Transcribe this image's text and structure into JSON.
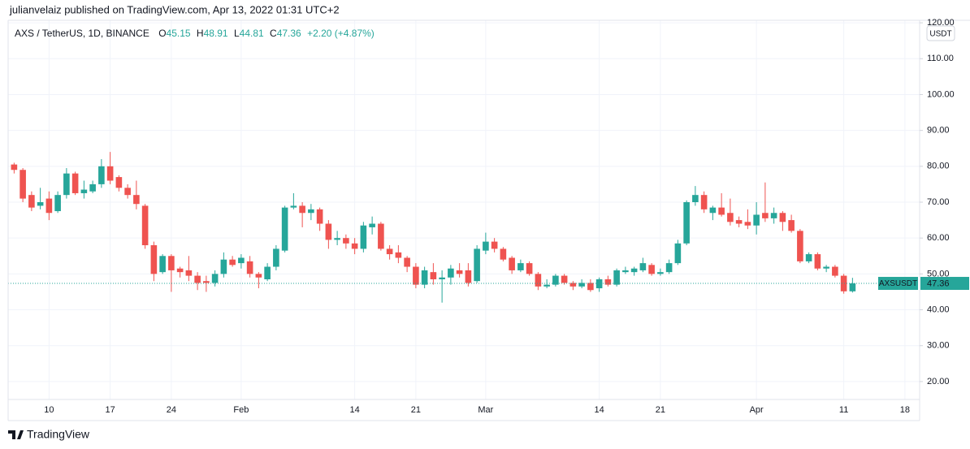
{
  "header": "julianvelaiz published on TradingView.com, Apr 13, 2022 01:31 UTC+2",
  "footer": "TradingView",
  "chart_data": {
    "type": "candlestick",
    "title": "AXS / TetherUS, 1D, BINANCE",
    "ohlc_letters": [
      "O",
      "H",
      "L",
      "C"
    ],
    "change": "+2.20 (+4.87%)",
    "currency": "USDT",
    "symbol_label": "AXSUSDT",
    "up_color": "#26a69a",
    "down_color": "#ef5350",
    "grid": true,
    "ylim": [
      15,
      120.7
    ],
    "yticks": [
      {
        "value": 20,
        "label": "20.00"
      },
      {
        "value": 30,
        "label": "30.00"
      },
      {
        "value": 40,
        "label": "40.00"
      },
      {
        "value": 50,
        "label": "50.00"
      },
      {
        "value": 60,
        "label": "60.00"
      },
      {
        "value": 70,
        "label": "70.00"
      },
      {
        "value": 80,
        "label": "80.00"
      },
      {
        "value": 90,
        "label": "90.00"
      },
      {
        "value": 100,
        "label": "100.00"
      },
      {
        "value": 110,
        "label": "110.00"
      },
      {
        "value": 120,
        "label": "120.00"
      }
    ],
    "categories": [
      null,
      null,
      null,
      null,
      "10",
      null,
      null,
      null,
      null,
      null,
      null,
      "17",
      null,
      null,
      null,
      null,
      null,
      null,
      "24",
      null,
      null,
      null,
      null,
      null,
      null,
      null,
      "Feb",
      null,
      null,
      null,
      null,
      null,
      null,
      null,
      null,
      null,
      null,
      null,
      null,
      "14",
      null,
      null,
      null,
      null,
      null,
      null,
      "21",
      null,
      null,
      null,
      null,
      null,
      null,
      null,
      "Mar",
      null,
      null,
      null,
      null,
      null,
      null,
      null,
      null,
      null,
      null,
      null,
      null,
      "14",
      null,
      null,
      null,
      null,
      null,
      null,
      "21",
      null,
      null,
      null,
      null,
      null,
      null,
      null,
      null,
      null,
      null,
      "Apr",
      null,
      null,
      null,
      null,
      null,
      null,
      null,
      null,
      null,
      "11",
      null,
      null,
      null,
      null,
      null,
      null,
      "18",
      null
    ],
    "open": [
      80.5,
      79,
      72,
      69,
      71,
      67.5,
      72,
      78,
      72.5,
      73,
      75,
      80,
      77,
      74,
      72,
      69,
      58,
      50.5,
      55,
      51.5,
      51,
      49.5,
      48,
      47.5,
      50,
      54,
      53,
      53.5,
      50,
      48.5,
      52,
      56.5,
      68.5,
      69,
      67,
      68,
      64,
      59.5,
      60,
      58.5,
      57,
      63,
      64,
      57,
      56,
      54.5,
      52,
      47,
      50.5,
      48.5,
      49,
      51,
      51,
      48,
      56.5,
      59,
      57,
      54.5,
      51,
      53,
      50,
      46.5,
      47,
      49.5,
      47.5,
      46.5,
      47.5,
      46,
      48.5,
      47,
      50.5,
      50.5,
      51,
      52.5,
      50,
      50.5,
      53,
      58.5,
      70,
      72,
      67,
      68.5,
      67,
      65,
      64.5,
      63.5,
      67,
      65.5,
      67,
      65,
      62,
      53.5,
      55.5,
      51.5,
      52,
      49.5,
      45.15,
      null,
      null,
      null,
      null,
      null,
      null,
      null
    ],
    "high": [
      81,
      79.5,
      73,
      74,
      73,
      73,
      79.5,
      78.5,
      76,
      76,
      82,
      84,
      77.5,
      75,
      76,
      69.5,
      59,
      55.5,
      55.5,
      52,
      55,
      50.5,
      49.5,
      51,
      56,
      55,
      55.5,
      55,
      50.5,
      53,
      58,
      69,
      72.5,
      70,
      69.5,
      68.5,
      65,
      62,
      61,
      60,
      64.5,
      66,
      64.5,
      58,
      58,
      55,
      53,
      52,
      53,
      51,
      52.5,
      53,
      53,
      58,
      61.5,
      60,
      57.5,
      55,
      54,
      53.5,
      50.5,
      48.5,
      50,
      50,
      48,
      48.5,
      48.5,
      49,
      49.5,
      51.5,
      52,
      52,
      54.5,
      53,
      51.5,
      54,
      59.5,
      70.5,
      74.5,
      73,
      69,
      72.5,
      71,
      66,
      68,
      70,
      75.5,
      68.5,
      67.5,
      66.5,
      62.5,
      56,
      56,
      52.5,
      52.5,
      50,
      48.91,
      null,
      null,
      null,
      null,
      null,
      null,
      null
    ],
    "low": [
      78,
      70,
      67.5,
      68,
      65,
      67,
      71,
      72,
      71,
      72.5,
      74,
      75,
      73,
      71,
      68,
      57,
      48,
      50,
      45,
      49,
      48,
      45.5,
      45,
      46.5,
      49,
      52,
      51.5,
      49,
      46,
      48,
      51,
      56,
      68,
      63,
      65,
      62,
      57,
      58,
      57,
      55.5,
      56,
      61,
      56.5,
      54,
      53,
      50.5,
      46,
      46,
      47,
      42,
      47,
      49,
      46.5,
      47.5,
      55.5,
      56,
      53.5,
      50,
      50.5,
      49.5,
      45.5,
      46,
      46.5,
      47,
      45.5,
      46,
      45,
      45,
      46.5,
      46.5,
      50,
      49.5,
      50.5,
      49.5,
      49.5,
      50,
      52.5,
      58,
      69,
      67,
      65,
      66,
      63.5,
      63,
      62.5,
      61,
      64.5,
      64,
      62,
      61.5,
      53,
      53,
      51,
      50.5,
      49,
      44.5,
      44.81,
      null,
      null,
      null,
      null,
      null,
      null,
      null
    ],
    "close": [
      79,
      71,
      68.5,
      70,
      67,
      72,
      78,
      72.5,
      73.5,
      75,
      80,
      76,
      74,
      72,
      69.5,
      58,
      50,
      55,
      51,
      50.5,
      49.5,
      47.5,
      47.5,
      50,
      54,
      52.5,
      54.5,
      50,
      49,
      52,
      57,
      68.5,
      69,
      67,
      68,
      64,
      59.5,
      60,
      58.5,
      57,
      63.5,
      64,
      57,
      55.5,
      54.5,
      52,
      47,
      51,
      48.5,
      49,
      51.5,
      50,
      47.5,
      57,
      59,
      57,
      54,
      51,
      53,
      50,
      46.5,
      47,
      49.5,
      47.5,
      46.5,
      47.5,
      45.5,
      48.5,
      47,
      51,
      51,
      51.5,
      53,
      50,
      50.5,
      53,
      58.5,
      70,
      72,
      68,
      68.5,
      66.5,
      64.5,
      64,
      63.5,
      66.5,
      65.5,
      67,
      64.5,
      62,
      53.5,
      55.5,
      51.5,
      52,
      49.5,
      45.15,
      47.36,
      null,
      null,
      null,
      null,
      null,
      null,
      null
    ]
  }
}
